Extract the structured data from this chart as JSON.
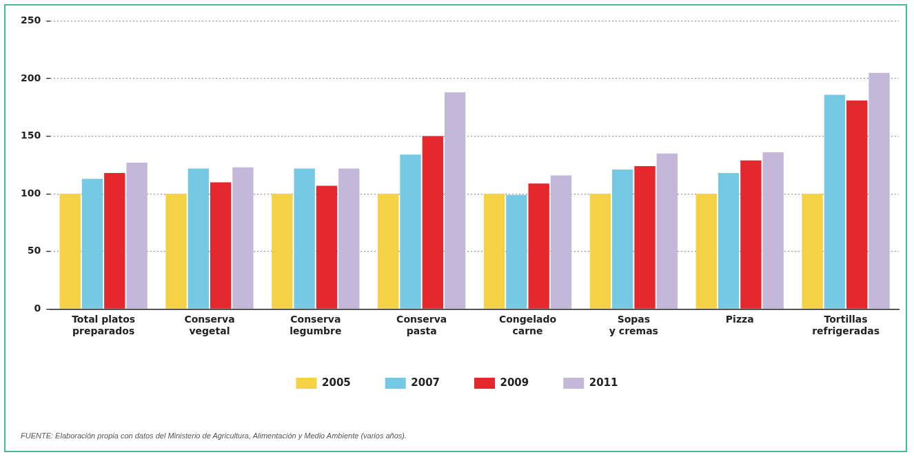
{
  "chart_data": {
    "type": "bar",
    "categories": [
      "Total platos\npreparados",
      "Conserva\nvegetal",
      "Conserva\nlegumbre",
      "Conserva\npasta",
      "Congelado\ncarne",
      "Sopas\ny cremas",
      "Pizza",
      "Tortillas\nrefrigeradas"
    ],
    "series": [
      {
        "name": "2005",
        "color": "#f5d245",
        "values": [
          100,
          100,
          100,
          100,
          100,
          100,
          100,
          100
        ]
      },
      {
        "name": "2007",
        "color": "#76c9e3",
        "values": [
          113,
          122,
          122,
          134,
          99,
          121,
          118,
          186
        ]
      },
      {
        "name": "2009",
        "color": "#e4282d",
        "values": [
          118,
          110,
          107,
          150,
          109,
          124,
          129,
          181
        ]
      },
      {
        "name": "2011",
        "color": "#c3b8da",
        "values": [
          127,
          123,
          122,
          188,
          116,
          135,
          136,
          205
        ]
      }
    ],
    "ylim": [
      0,
      250
    ],
    "yticks": [
      0,
      50,
      100,
      150,
      200,
      250
    ],
    "grid": "y",
    "legend": "bottom",
    "annotations": [
      "FUENTE: Elaboración propia con datos del Ministerio de Agricultura, Alimentación y Medio Ambiente (varios años)."
    ]
  }
}
